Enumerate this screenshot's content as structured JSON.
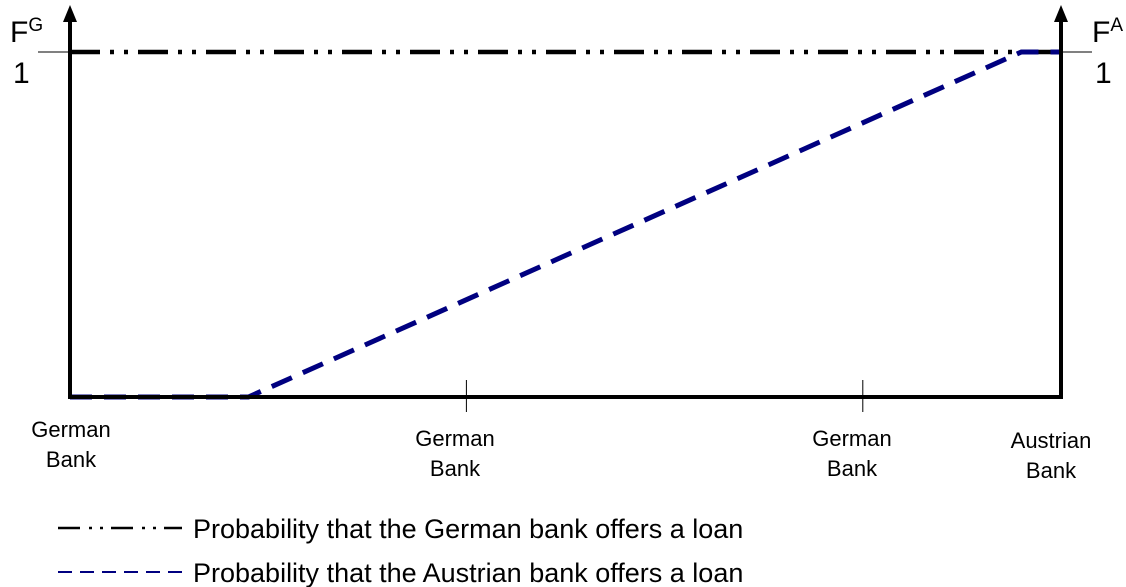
{
  "chart_data": {
    "type": "line",
    "x_categories": [
      [
        "German",
        "Bank"
      ],
      [
        "German",
        "Bank"
      ],
      [
        "German",
        "Bank"
      ],
      [
        "Austrian",
        "Bank"
      ]
    ],
    "left_axis": {
      "letter": "F",
      "superscript": "G",
      "tick": "1"
    },
    "right_axis": {
      "letter": "F",
      "superscript": "A",
      "tick": "1"
    },
    "xlim": [
      0,
      1
    ],
    "ylim": [
      0,
      1
    ],
    "grid": false,
    "legend_position": "bottom",
    "series": [
      {
        "name": "Probability that the German bank offers a loan",
        "style": "dash-dot-dot",
        "color": "#000000",
        "points": [
          [
            0,
            1
          ],
          [
            1,
            1
          ]
        ]
      },
      {
        "name": "Probability that the Austrian bank offers a loan",
        "style": "dashed",
        "color": "#000080",
        "points": [
          [
            0,
            0
          ],
          [
            0.18,
            0
          ],
          [
            0.96,
            1
          ],
          [
            1,
            1
          ]
        ]
      }
    ]
  }
}
